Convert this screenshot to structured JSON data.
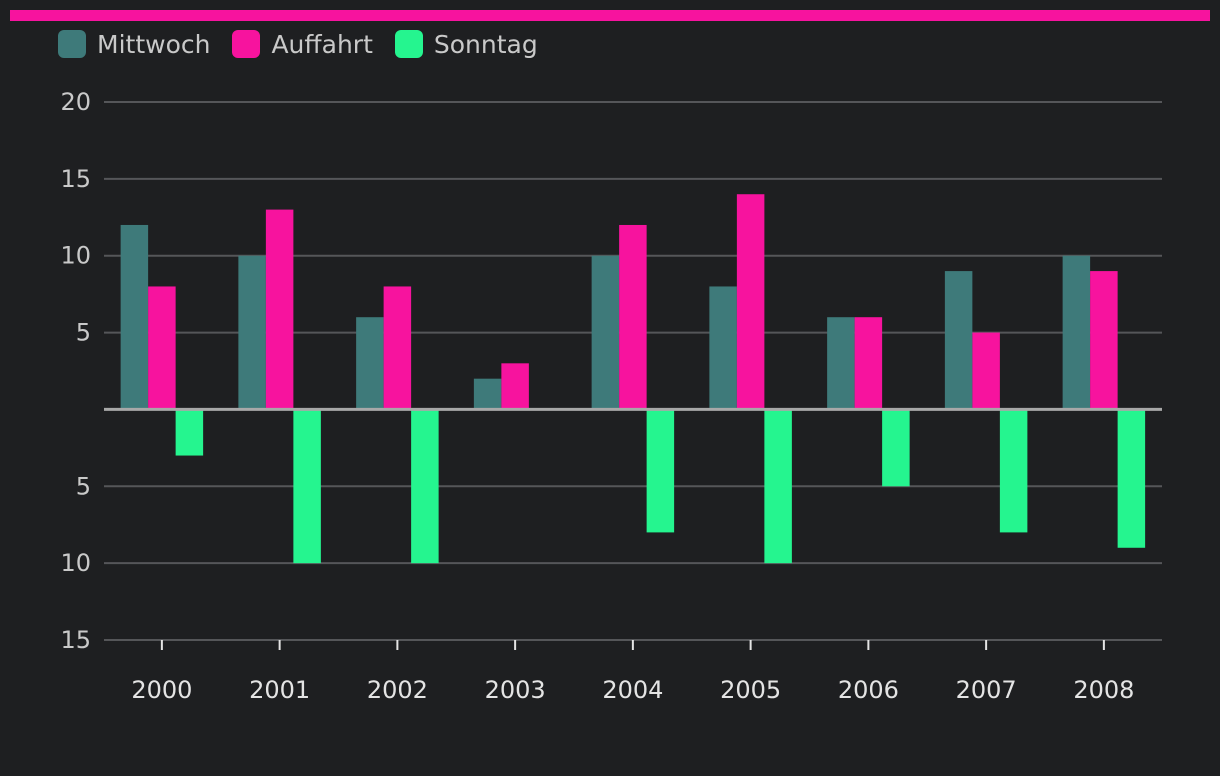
{
  "colors": {
    "background": "#1e1f21",
    "accent_bar": "#f7139e",
    "grid": "#555659",
    "axis": "#a8a8a8"
  },
  "chart_data": {
    "type": "bar",
    "categories": [
      "2000",
      "2001",
      "2002",
      "2003",
      "2004",
      "2005",
      "2006",
      "2007",
      "2008"
    ],
    "series": [
      {
        "name": "Mittwoch",
        "color": "#3e7a7a",
        "values": [
          12,
          10,
          6,
          2,
          10,
          8,
          6,
          9,
          10
        ]
      },
      {
        "name": "Auffahrt",
        "color": "#f7139e",
        "values": [
          8,
          13,
          8,
          3,
          12,
          14,
          6,
          5,
          9
        ]
      },
      {
        "name": "Sonntag",
        "color": "#25f58f",
        "values": [
          -3,
          -10,
          -10,
          0,
          -8,
          -10,
          -5,
          -8,
          -9
        ]
      }
    ],
    "ylim": [
      -15,
      20
    ],
    "yticks": [
      20,
      15,
      10,
      5,
      -5,
      -10,
      -15
    ],
    "ytick_labels": [
      "20",
      "15",
      "10",
      "5",
      "5",
      "10",
      "15"
    ],
    "grid": true,
    "legend_position": "top-left"
  }
}
